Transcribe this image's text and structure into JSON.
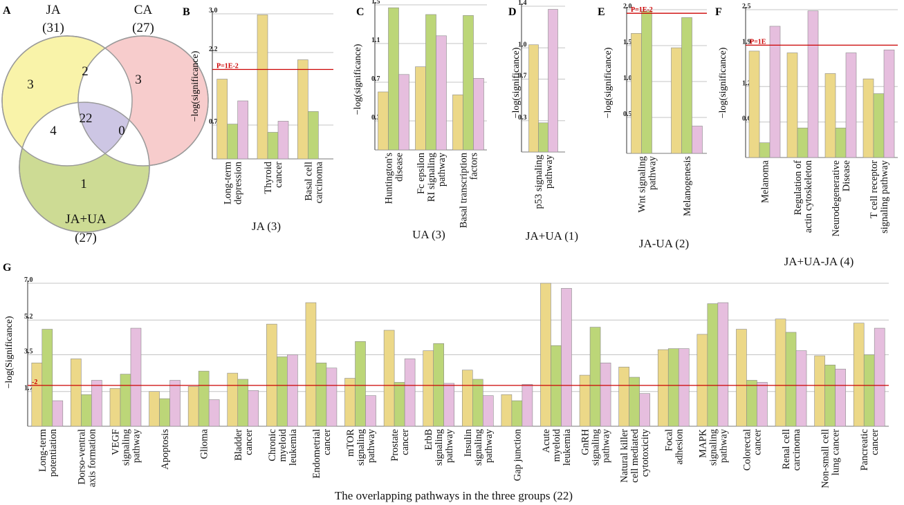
{
  "colors": {
    "ja": "#ecd888",
    "ua": "#bcd678",
    "ja_ua": "#e6bede",
    "threshold": "#cc0000",
    "grid": "#c4c4c4",
    "bar_edge": "#8a8a8a",
    "venn_ja": "#f9f3a9",
    "venn_ca": "#f7cccc",
    "venn_ua": "#cddb94",
    "venn_center": "#cdc6e4"
  },
  "venn": {
    "letter": "A",
    "sets": [
      {
        "name": "JA",
        "count": "(31)"
      },
      {
        "name": "CA",
        "count": "(27)"
      },
      {
        "name": "JA+UA",
        "count": "(27)"
      }
    ],
    "regions": {
      "ja_only": "3",
      "ca_only": "3",
      "ua_only": "1",
      "ja_ca": "2",
      "ja_ua": "4",
      "ca_ua": "0",
      "all": "22"
    }
  },
  "chart_data": [
    {
      "letter": "B",
      "type": "bar",
      "ylabel": "−log(significance)",
      "xtitle": "JA (3)",
      "ylim": [
        0,
        3.0
      ],
      "yticks": [
        "3.0",
        "2.2",
        "0.7"
      ],
      "ytick_values": [
        3.0,
        2.2,
        0.7
      ],
      "threshold": {
        "value": 1.85,
        "label": "P=1E-2"
      },
      "groups": [
        {
          "label": [
            "Long-term",
            "depression"
          ],
          "values": [
            1.65,
            0.72,
            1.2
          ]
        },
        {
          "label": [
            "Thyroid",
            "cancer"
          ],
          "values": [
            2.98,
            0.55,
            0.78
          ]
        },
        {
          "label": [
            "Basal cell",
            "carcinoma"
          ],
          "values": [
            2.05,
            0.98,
            0.0
          ]
        }
      ]
    },
    {
      "letter": "C",
      "type": "bar",
      "ylabel": "−log(significance)",
      "xtitle": "UA (3)",
      "ylim": [
        0,
        1.5
      ],
      "yticks": [
        "1.5",
        "1.1",
        "0.7",
        "0.3"
      ],
      "ytick_values": [
        1.5,
        1.1,
        0.7,
        0.3
      ],
      "threshold": null,
      "groups": [
        {
          "label": [
            "Huntington's",
            "disease"
          ],
          "values": [
            0.6,
            1.47,
            0.78
          ]
        },
        {
          "label": [
            "Fc epsilon",
            "RI signaling",
            "pathway"
          ],
          "values": [
            0.86,
            1.4,
            1.18
          ]
        },
        {
          "label": [
            "Basal transcription",
            "factors"
          ],
          "values": [
            0.57,
            1.39,
            0.74
          ]
        }
      ]
    },
    {
      "letter": "D",
      "type": "bar",
      "ylabel": "−log(significance)",
      "xtitle": "JA+UA (1)",
      "ylim": [
        0,
        1.4
      ],
      "yticks": [
        "1.4",
        "1.0",
        "0.7",
        "0.3"
      ],
      "ytick_values": [
        1.4,
        1.0,
        0.7,
        0.3
      ],
      "threshold": null,
      "groups": [
        {
          "label": [
            "p53 signaling",
            "pathway"
          ],
          "values": [
            1.03,
            0.28,
            1.37
          ]
        }
      ]
    },
    {
      "letter": "E",
      "type": "bar",
      "ylabel": "−log(significance)",
      "xtitle": "JA-UA (2)",
      "ylim": [
        0,
        2.0
      ],
      "yticks": [
        "2.0",
        "1.5",
        "1.0",
        "0.5"
      ],
      "ytick_values": [
        2.0,
        1.5,
        1.0,
        0.5
      ],
      "threshold": {
        "value": 1.95,
        "label": "P=1E-2"
      },
      "groups": [
        {
          "label": [
            "Wnt signaling",
            "pathway"
          ],
          "values": [
            1.67,
            1.98,
            0.0
          ]
        },
        {
          "label": [
            "Melanogenesis"
          ],
          "values": [
            1.47,
            1.89,
            0.38
          ]
        }
      ]
    },
    {
      "letter": "F",
      "type": "bar",
      "ylabel": "−log(significance)",
      "xtitle": "JA+UA-JA (4)",
      "ylim": [
        0,
        2.5
      ],
      "yticks": [
        "2.5",
        "1.9",
        "1.2",
        "0.6"
      ],
      "ytick_values": [
        2.5,
        1.9,
        1.2,
        0.6
      ],
      "threshold": {
        "value": 1.9,
        "label": "P=1E"
      },
      "groups": [
        {
          "label": [
            "Melanoma"
          ],
          "values": [
            1.8,
            0.25,
            2.22
          ]
        },
        {
          "label": [
            "Regulation of",
            "actin cytoskeleton"
          ],
          "values": [
            1.77,
            0.5,
            2.48
          ]
        },
        {
          "label": [
            "Neurodegenerative",
            "Disease"
          ],
          "values": [
            1.42,
            0.5,
            1.77
          ]
        },
        {
          "label": [
            "T cell receptor",
            "signaling pathway"
          ],
          "values": [
            1.33,
            1.08,
            1.82
          ]
        }
      ]
    },
    {
      "letter": "G",
      "type": "bar",
      "ylabel": "−log(Significance)",
      "xtitle": "The overlapping pathways in the three groups (22)",
      "ylim": [
        0,
        7.0
      ],
      "yticks": [
        "7.0",
        "5.2",
        "3.5",
        "1.7"
      ],
      "ytick_values": [
        7.0,
        5.2,
        3.5,
        1.7
      ],
      "threshold": {
        "value": 2.0,
        "label": "-2"
      },
      "groups": [
        {
          "label": [
            "Long-term",
            "potentiation"
          ],
          "values": [
            3.1,
            4.75,
            1.25
          ]
        },
        {
          "label": [
            "Dorso-ventral",
            "axis formation"
          ],
          "values": [
            3.3,
            1.55,
            2.25
          ]
        },
        {
          "label": [
            "VEGF",
            "signaling",
            "pathway"
          ],
          "values": [
            1.85,
            2.55,
            4.8
          ]
        },
        {
          "label": [
            "Apoptosis"
          ],
          "values": [
            1.7,
            1.35,
            2.25
          ]
        },
        {
          "label": [
            "Glioma"
          ],
          "values": [
            1.95,
            2.7,
            1.3
          ]
        },
        {
          "label": [
            "Bladder",
            "cancer"
          ],
          "values": [
            2.6,
            2.3,
            1.75
          ]
        },
        {
          "label": [
            "Chronic",
            "myeloid",
            "leukemia"
          ],
          "values": [
            5.0,
            3.4,
            3.5
          ]
        },
        {
          "label": [
            "Endometrial",
            "cancer"
          ],
          "values": [
            6.05,
            3.1,
            2.85
          ]
        },
        {
          "label": [
            "mTOR",
            "signaling",
            "pathway"
          ],
          "values": [
            2.35,
            4.15,
            1.5
          ]
        },
        {
          "label": [
            "Prostate",
            "cancer"
          ],
          "values": [
            4.7,
            2.15,
            3.3
          ]
        },
        {
          "label": [
            "ErbB",
            "signaling",
            "pathway"
          ],
          "values": [
            3.7,
            4.05,
            2.1
          ]
        },
        {
          "label": [
            "Insulin",
            "signaling",
            "pathway"
          ],
          "values": [
            2.75,
            2.3,
            1.5
          ]
        },
        {
          "label": [
            "Gap junction"
          ],
          "values": [
            1.55,
            1.25,
            2.05
          ]
        },
        {
          "label": [
            "Acute",
            "myeloid",
            "leukemia"
          ],
          "values": [
            7.0,
            3.95,
            6.75
          ]
        },
        {
          "label": [
            "GnRH",
            "signaling",
            "pathway"
          ],
          "values": [
            2.5,
            4.85,
            3.1
          ]
        },
        {
          "label": [
            "Natural killer",
            "cell mediated",
            "cytotoxicity"
          ],
          "values": [
            2.9,
            2.4,
            1.6
          ]
        },
        {
          "label": [
            "Focal",
            "adhesion"
          ],
          "values": [
            3.75,
            3.8,
            3.8
          ]
        },
        {
          "label": [
            "MAPK",
            "signaling",
            "pathway"
          ],
          "values": [
            4.5,
            6.0,
            6.05
          ]
        },
        {
          "label": [
            "Colorectal",
            "cancer"
          ],
          "values": [
            4.75,
            2.25,
            2.15
          ]
        },
        {
          "label": [
            "Renal cell",
            "carcinoma"
          ],
          "values": [
            5.25,
            4.6,
            3.7
          ]
        },
        {
          "label": [
            "Non-small cell",
            "lung cancer"
          ],
          "values": [
            3.45,
            3.0,
            2.8
          ]
        },
        {
          "label": [
            "Pancreatic",
            "cancer"
          ],
          "values": [
            5.05,
            3.5,
            4.8
          ]
        }
      ]
    }
  ]
}
